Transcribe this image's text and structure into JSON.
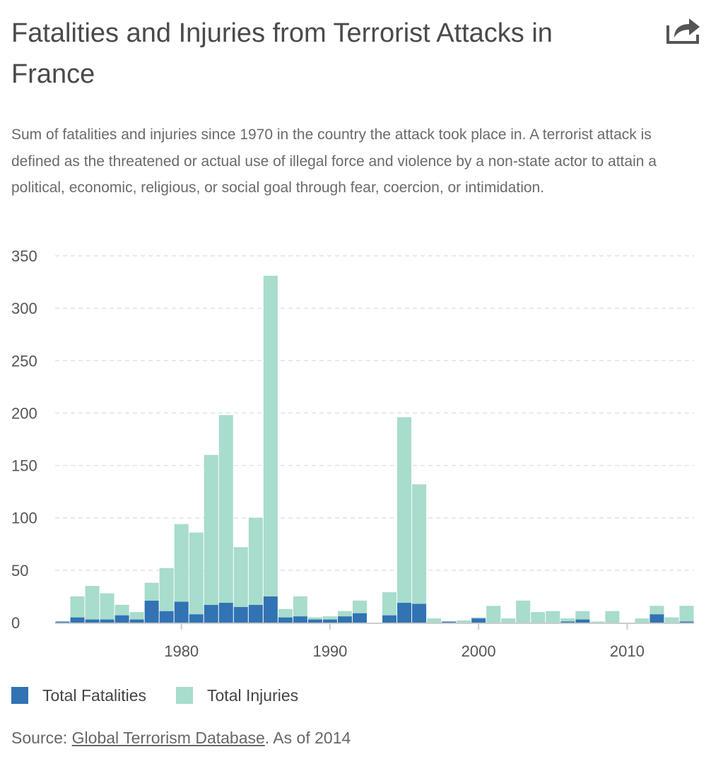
{
  "header": {
    "title": "Fatalities and Injuries from Terrorist Attacks in France",
    "share_icon": "share-icon"
  },
  "subtitle": "Sum of fatalities and injuries since 1970 in the country the attack took place in. A terrorist attack is defined as the threatened or actual use of illegal force and violence by a non-state actor to attain a political, economic, religious, or social goal through fear, coercion, or intimidation.",
  "legend": {
    "fatalities_label": "Total Fatalities",
    "injuries_label": "Total Injuries"
  },
  "source": {
    "prefix": "Source: ",
    "link_text": "Global Terrorism Database",
    "suffix": ". As of 2014"
  },
  "colors": {
    "fatalities": "#3173b3",
    "injuries": "#a8dccd",
    "grid": "#e2e2e2",
    "axis": "#cccccc",
    "tick_text": "#555555"
  },
  "chart_data": {
    "type": "bar",
    "stacked": true,
    "title": "Fatalities and Injuries from Terrorist Attacks in France",
    "xlabel": "",
    "ylabel": "",
    "ylim": [
      0,
      350
    ],
    "yticks": [
      0,
      50,
      100,
      150,
      200,
      250,
      300,
      350
    ],
    "xticks": [
      1980,
      1990,
      2000,
      2010
    ],
    "xlim": [
      1971.5,
      2014.5
    ],
    "grid": true,
    "legend_position": "bottom-left",
    "categories": [
      1972,
      1973,
      1974,
      1975,
      1976,
      1977,
      1978,
      1979,
      1980,
      1981,
      1982,
      1983,
      1984,
      1985,
      1986,
      1987,
      1988,
      1989,
      1990,
      1991,
      1992,
      1993,
      1994,
      1995,
      1996,
      1997,
      1998,
      1999,
      2000,
      2001,
      2002,
      2003,
      2004,
      2005,
      2006,
      2007,
      2008,
      2009,
      2010,
      2011,
      2012,
      2013,
      2014
    ],
    "series": [
      {
        "name": "Total Fatalities",
        "values": [
          1,
          5,
          3,
          3,
          7,
          3,
          21,
          11,
          20,
          8,
          17,
          19,
          15,
          17,
          25,
          5,
          6,
          3,
          3,
          6,
          9,
          0,
          7,
          19,
          18,
          0,
          1,
          0,
          4,
          0,
          0,
          0,
          0,
          0,
          1,
          3,
          0,
          0,
          0,
          0,
          8,
          0,
          1
        ]
      },
      {
        "name": "Total Injuries",
        "values": [
          0,
          20,
          32,
          25,
          10,
          7,
          17,
          41,
          74,
          78,
          143,
          179,
          57,
          83,
          306,
          8,
          19,
          2,
          3,
          5,
          12,
          0,
          22,
          177,
          114,
          4,
          0,
          2,
          1,
          16,
          4,
          21,
          10,
          11,
          3,
          8,
          1,
          11,
          0,
          4,
          8,
          5,
          15
        ]
      }
    ]
  }
}
